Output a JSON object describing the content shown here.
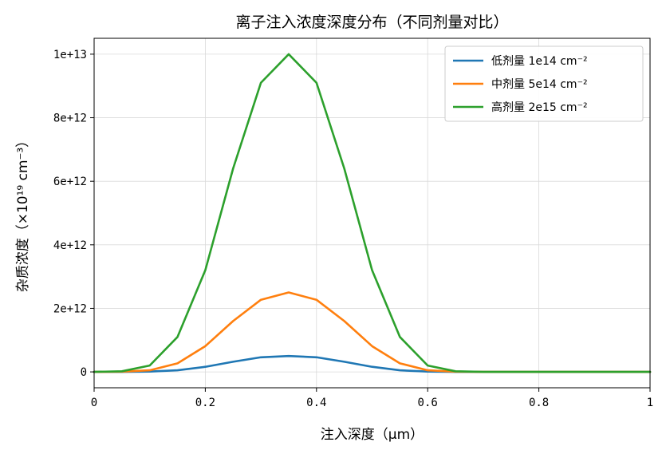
{
  "chart_data": {
    "type": "line",
    "title": "离子注入浓度深度分布（不同剂量对比）",
    "xlabel": "注入深度（μm）",
    "ylabel": "杂质浓度（×10¹⁹ cm⁻³）",
    "xlim": [
      0,
      1
    ],
    "ylim": [
      -500000000000.0,
      10500000000000.0
    ],
    "x_ticks": [
      0,
      0.2,
      0.4,
      0.6,
      0.8,
      1
    ],
    "x_tick_labels": [
      "0",
      "0.2",
      "0.4",
      "0.6",
      "0.8",
      "1"
    ],
    "y_ticks": [
      0,
      2000000000000.0,
      4000000000000.0,
      6000000000000.0,
      8000000000000.0,
      10000000000000.0
    ],
    "y_tick_labels": [
      "0",
      "2e+12",
      "4e+12",
      "6e+12",
      "8e+12",
      "1e+13"
    ],
    "grid": true,
    "legend_position": "top-right",
    "series": [
      {
        "name": "低剂量 1e14 cm⁻²",
        "color": "#1f77b4",
        "x": [
          0,
          0.05,
          0.1,
          0.15,
          0.2,
          0.25,
          0.3,
          0.35,
          0.4,
          0.45,
          0.5,
          0.55,
          0.6,
          0.65,
          0.7,
          0.8,
          0.9,
          1.0
        ],
        "values": [
          0,
          1000000000.0,
          10000000000.0,
          50000000000.0,
          160000000000.0,
          320000000000.0,
          460000000000.0,
          500000000000.0,
          460000000000.0,
          320000000000.0,
          160000000000.0,
          50000000000.0,
          10000000000.0,
          1000000000.0,
          0,
          0,
          0,
          0
        ]
      },
      {
        "name": "中剂量 5e14 cm⁻²",
        "color": "#ff7f0e",
        "x": [
          0,
          0.05,
          0.1,
          0.15,
          0.2,
          0.25,
          0.3,
          0.35,
          0.4,
          0.45,
          0.5,
          0.55,
          0.6,
          0.65,
          0.7,
          0.8,
          0.9,
          1.0
        ],
        "values": [
          0,
          6000000000.0,
          50000000000.0,
          270000000000.0,
          810000000000.0,
          1600000000000.0,
          2270000000000.0,
          2500000000000.0,
          2270000000000.0,
          1600000000000.0,
          810000000000.0,
          270000000000.0,
          50000000000.0,
          6000000000.0,
          0,
          0,
          0,
          0
        ]
      },
      {
        "name": "高剂量 2e15 cm⁻²",
        "color": "#2ca02c",
        "x": [
          0,
          0.05,
          0.1,
          0.15,
          0.2,
          0.25,
          0.3,
          0.35,
          0.4,
          0.45,
          0.5,
          0.55,
          0.6,
          0.65,
          0.7,
          0.8,
          0.9,
          1.0
        ],
        "values": [
          0,
          20000000000.0,
          200000000000.0,
          1100000000000.0,
          3200000000000.0,
          6400000000000.0,
          9100000000000.0,
          10000000000000.0,
          9100000000000.0,
          6400000000000.0,
          3200000000000.0,
          1100000000000.0,
          200000000000.0,
          20000000000.0,
          0,
          0,
          0,
          0
        ]
      }
    ]
  }
}
